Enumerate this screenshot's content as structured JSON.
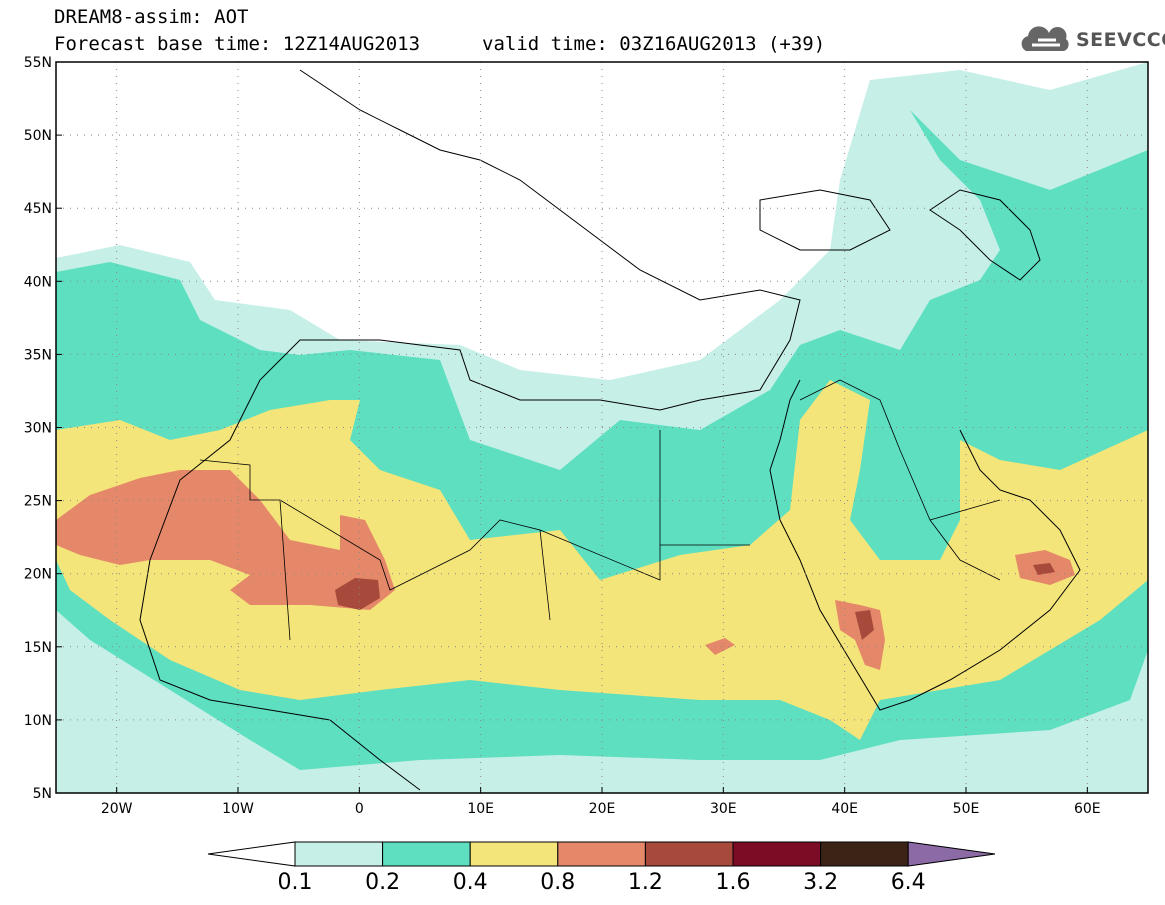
{
  "header": {
    "line1": "DREAM8-assim: AOT",
    "forecast_base": "Forecast base time: 12Z14AUG2013",
    "valid_time": "valid time: 03Z16AUG2013 (+39)"
  },
  "logo": {
    "text": "SEEVCCC",
    "icon": "cloud-icon"
  },
  "map": {
    "projection": "lat-lon",
    "lon_range": [
      -25,
      65
    ],
    "lat_range": [
      5,
      55
    ],
    "grid": "dotted",
    "lat_ticks": [
      "5N",
      "10N",
      "15N",
      "20N",
      "25N",
      "30N",
      "35N",
      "40N",
      "45N",
      "50N",
      "55N"
    ],
    "lon_ticks": [
      "20W",
      "10W",
      "0",
      "10E",
      "20E",
      "30E",
      "40E",
      "50E",
      "60E"
    ],
    "lat_values": [
      5,
      10,
      15,
      20,
      25,
      30,
      35,
      40,
      45,
      50,
      55
    ],
    "lon_values": [
      -20,
      -10,
      0,
      10,
      20,
      30,
      40,
      50,
      60
    ]
  },
  "colorbar": {
    "levels": [
      "0.1",
      "0.2",
      "0.4",
      "0.8",
      "1.2",
      "1.6",
      "3.2",
      "6.4"
    ],
    "colors": [
      "#c6efe8",
      "#5ddfc0",
      "#f4e57a",
      "#e58869",
      "#a84a3b",
      "#7c0c26",
      "#3b2416",
      "#8c6aa6"
    ],
    "under_color": "#ffffff",
    "over_color": "#8c6aa6"
  }
}
